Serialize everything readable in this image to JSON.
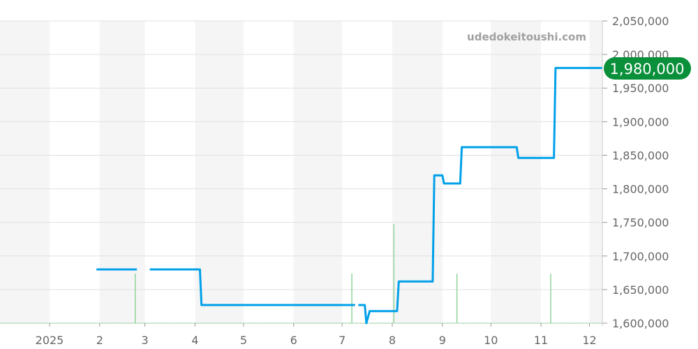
{
  "watermark": "udedokeitoushi.com",
  "chart_data": {
    "type": "line",
    "title": "",
    "xlabel": "",
    "ylabel": "",
    "xlim": [
      "2024-12-01",
      "2025-12-09"
    ],
    "ylim": [
      1600000,
      2050000
    ],
    "grid": true,
    "y_ticks": [
      "1,600,000",
      "1,650,000",
      "1,700,000",
      "1,750,000",
      "1,800,000",
      "1,850,000",
      "1,900,000",
      "1,950,000",
      "2,000,000",
      "2,050,000"
    ],
    "y_tick_values": [
      1600000,
      1650000,
      1700000,
      1750000,
      1800000,
      1850000,
      1900000,
      1950000,
      2000000,
      2050000
    ],
    "x_ticks": [
      {
        "date": "2025-01-01",
        "label": "2025"
      },
      {
        "date": "2025-02-01",
        "label": "2"
      },
      {
        "date": "2025-03-01",
        "label": "3"
      },
      {
        "date": "2025-04-01",
        "label": "4"
      },
      {
        "date": "2025-05-01",
        "label": "5"
      },
      {
        "date": "2025-06-01",
        "label": "6"
      },
      {
        "date": "2025-07-01",
        "label": "7"
      },
      {
        "date": "2025-08-01",
        "label": "8"
      },
      {
        "date": "2025-09-01",
        "label": "9"
      },
      {
        "date": "2025-10-01",
        "label": "10"
      },
      {
        "date": "2025-11-01",
        "label": "11"
      },
      {
        "date": "2025-12-01",
        "label": "12"
      }
    ],
    "series": [
      {
        "color": "#00a0e9",
        "segments": [
          [
            [
              "2025-01-30",
              1680000
            ],
            [
              "2025-02-24",
              1680000
            ]
          ],
          [
            [
              "2025-03-04",
              1680000
            ],
            [
              "2025-04-04",
              1680000
            ],
            [
              "2025-04-05",
              1627000
            ],
            [
              "2025-07-09",
              1627000
            ]
          ],
          [
            [
              "2025-07-11",
              1627000
            ],
            [
              "2025-07-15",
              1627000
            ],
            [
              "2025-07-16",
              1600000
            ],
            [
              "2025-07-18",
              1618000
            ],
            [
              "2025-08-04",
              1618000
            ],
            [
              "2025-08-05",
              1662000
            ],
            [
              "2025-08-26",
              1662000
            ],
            [
              "2025-08-27",
              1820000
            ],
            [
              "2025-09-01",
              1820000
            ],
            [
              "2025-09-02",
              1808000
            ],
            [
              "2025-09-12",
              1808000
            ],
            [
              "2025-09-13",
              1862000
            ],
            [
              "2025-10-17",
              1862000
            ],
            [
              "2025-10-18",
              1846000
            ],
            [
              "2025-11-09",
              1846000
            ],
            [
              "2025-11-10",
              1980000
            ],
            [
              "2025-12-09",
              1980000
            ]
          ]
        ]
      }
    ],
    "volume": {
      "color": "#8fd49a",
      "bars": [
        {
          "date": "2025-02-23",
          "value": 1
        },
        {
          "date": "2025-07-07",
          "value": 1
        },
        {
          "date": "2025-08-02",
          "value": 2
        },
        {
          "date": "2025-09-10",
          "value": 1
        },
        {
          "date": "2025-11-07",
          "value": 1
        }
      ]
    },
    "last_value_label": "1,980,000",
    "last_value_color": "#0a8f3a",
    "band_color": "#f5f5f5"
  }
}
